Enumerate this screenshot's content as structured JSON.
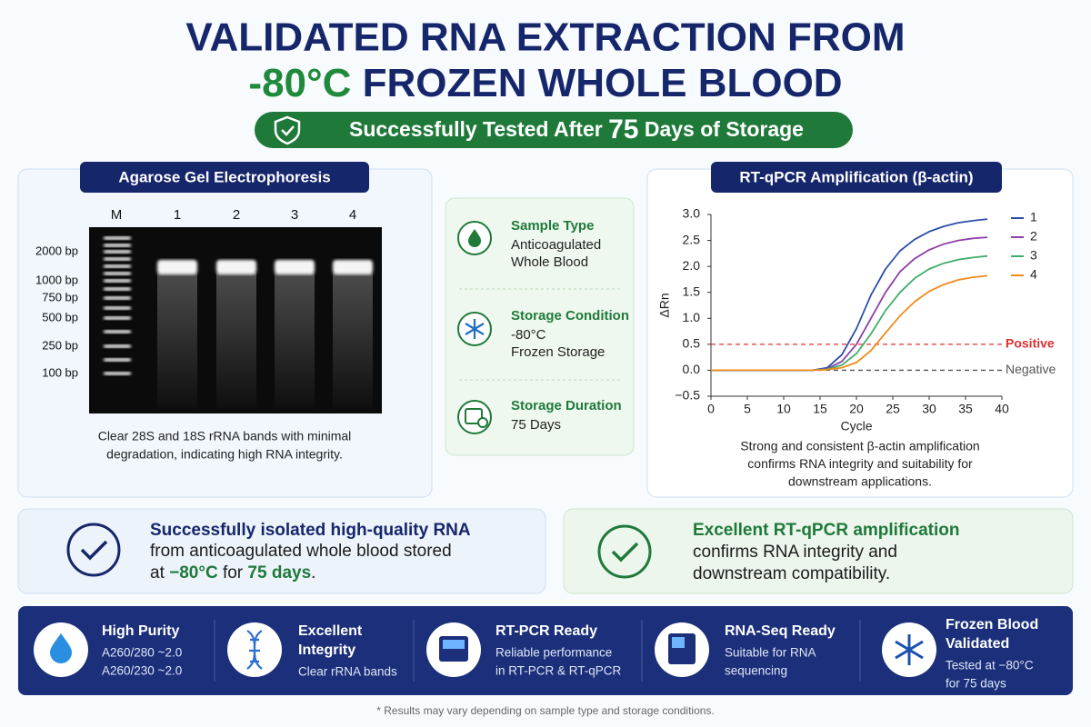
{
  "title": {
    "line1": "VALIDATED RNA EXTRACTION FROM",
    "line2_highlight": "-80°C",
    "line2_rest": " FROZEN WHOLE BLOOD"
  },
  "badge": {
    "before": "Successfully Tested After ",
    "number": "75",
    "after": " Days of Storage"
  },
  "gel": {
    "title": "Agarose Gel Electrophoresis",
    "lane_labels": [
      "M",
      "1",
      "2",
      "3",
      "4"
    ],
    "ladder_labels": [
      "2000 bp",
      "1000 bp",
      "750 bp",
      "500 bp",
      "250 bp",
      "100 bp"
    ],
    "caption": [
      "Clear 28S and 18S rRNA bands with minimal",
      "degradation, indicating high RNA integrity."
    ]
  },
  "sample_info": [
    {
      "title": "Sample Type",
      "lines": [
        "Anticoagulated",
        "Whole Blood"
      ]
    },
    {
      "title": "Storage Condition",
      "lines": [
        "-80°C",
        "Frozen Storage"
      ]
    },
    {
      "title": "Storage Duration",
      "lines": [
        "75 Days"
      ]
    }
  ],
  "chart_data": {
    "type": "line",
    "title": "RT-qPCR Amplification (β-actin)",
    "x_label": "Cycle",
    "y_label": "ΔRn",
    "x": [
      0,
      5,
      10,
      14,
      16,
      18,
      20,
      22,
      24,
      26,
      28,
      30,
      32,
      34,
      36,
      38
    ],
    "series": [
      {
        "name": "1",
        "color": "#2b4fa8",
        "values": [
          0,
          0,
          0,
          0,
          0.05,
          0.3,
          0.8,
          1.45,
          1.95,
          2.3,
          2.52,
          2.67,
          2.77,
          2.84,
          2.88,
          2.91
        ]
      },
      {
        "name": "2",
        "color": "#8e3fa8",
        "values": [
          0,
          0,
          0,
          0,
          0.03,
          0.17,
          0.5,
          1.0,
          1.5,
          1.9,
          2.15,
          2.32,
          2.43,
          2.5,
          2.54,
          2.56
        ]
      },
      {
        "name": "3",
        "color": "#3fae6a",
        "values": [
          0,
          0,
          0,
          0,
          0.02,
          0.1,
          0.32,
          0.7,
          1.15,
          1.5,
          1.77,
          1.95,
          2.06,
          2.13,
          2.17,
          2.2
        ]
      },
      {
        "name": "4",
        "color": "#f08a1c",
        "values": [
          0,
          0,
          0,
          0,
          0.01,
          0.05,
          0.15,
          0.38,
          0.72,
          1.05,
          1.32,
          1.52,
          1.65,
          1.74,
          1.79,
          1.82
        ]
      }
    ],
    "thresholds": [
      {
        "label": "Positive",
        "value": 0.5,
        "color": "#e03030"
      },
      {
        "label": "Negative",
        "value": 0,
        "color": "#555555"
      }
    ],
    "xlim": [
      0,
      40
    ],
    "ylim": [
      -0.5,
      3.0
    ],
    "xticks": [
      0,
      5,
      10,
      15,
      20,
      25,
      30,
      35,
      40
    ],
    "yticks": [
      {
        "value": 3,
        "label": "3.0"
      },
      2.5,
      {
        "value": 2,
        "label": "2.0"
      },
      1.5,
      {
        "value": 1,
        "label": "1.0"
      },
      0.5,
      {
        "value": 0,
        "label": "0.0"
      },
      {
        "value": -0.5,
        "label": "−0.5"
      }
    ],
    "legend": "right",
    "caption": [
      "Strong and consistent β-actin amplification",
      "confirms RNA integrity and suitability for",
      "downstream applications."
    ]
  },
  "summary_left": {
    "line1": "Successfully isolated high-quality RNA",
    "line2": "from anticoagulated whole blood stored",
    "line3": [
      "at ",
      "−80°C",
      " for ",
      "75 days",
      "."
    ]
  },
  "summary_right": {
    "line1": "Excellent RT-qPCR amplification",
    "line2": "confirms RNA integrity and",
    "line3": "downstream compatibility."
  },
  "features": [
    {
      "title": [
        "High Purity"
      ],
      "text": [
        "A260/280 ~2.0",
        "A260/230 ~2.0"
      ]
    },
    {
      "title": [
        "Excellent",
        "Integrity"
      ],
      "text": [
        "Clear rRNA bands"
      ]
    },
    {
      "title": [
        "RT-PCR Ready"
      ],
      "text": [
        "Reliable performance",
        "in RT-PCR & RT-qPCR"
      ]
    },
    {
      "title": [
        "RNA-Seq Ready"
      ],
      "text": [
        "Suitable for RNA",
        "sequencing"
      ]
    },
    {
      "title": [
        "Frozen Blood",
        "Validated"
      ],
      "text": [
        "Tested at −80°C",
        "for 75 days"
      ]
    }
  ],
  "footnote": "* Results may vary depending on sample type and storage conditions."
}
